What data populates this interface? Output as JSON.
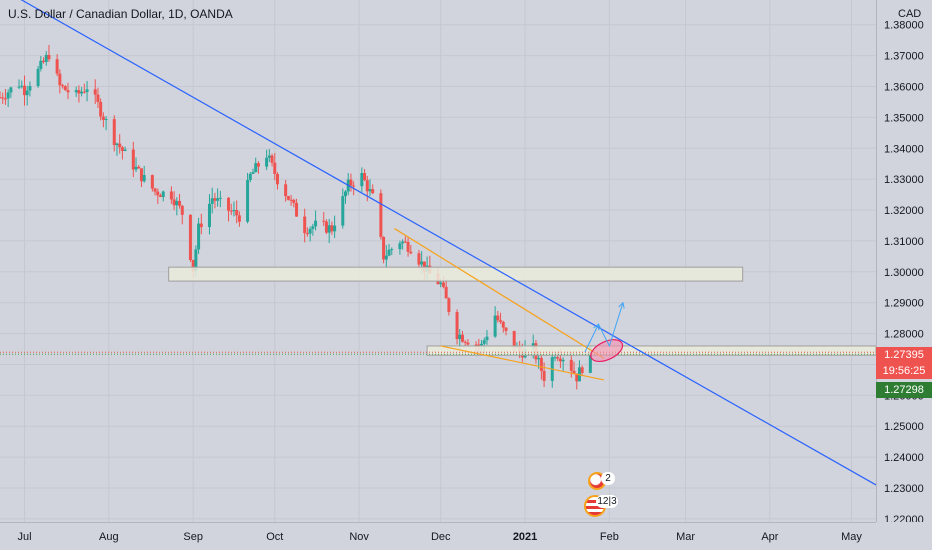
{
  "header": {
    "title": "U.S. Dollar / Canadian Dollar, 1D, OANDA",
    "currency": "CAD"
  },
  "price_axis": {
    "ticks": [
      "1.38000",
      "1.37000",
      "1.36000",
      "1.35000",
      "1.34000",
      "1.33000",
      "1.32000",
      "1.31000",
      "1.30000",
      "1.29000",
      "1.28000",
      "1.27000",
      "1.26000",
      "1.25000",
      "1.24000",
      "1.23000",
      "1.22000"
    ],
    "price_badge": "1.27395",
    "countdown": "19:56:25",
    "bid_badge": "1.27298"
  },
  "time_axis": {
    "ticks": [
      "Jul",
      "Aug",
      "Sep",
      "Oct",
      "Nov",
      "Dec",
      "2021",
      "Feb",
      "Mar",
      "Apr",
      "May"
    ]
  },
  "events": {
    "top_count": "2",
    "bottom_count": "12|3"
  },
  "colors": {
    "background": "#d1d4dc",
    "up": "#26a69a",
    "down": "#ef5350",
    "trendline": "#2962ff",
    "wedge": "#f7a21b",
    "price_badge": "#ef5350",
    "bid_badge": "#2e7d32",
    "target_arrow": "#42a5f5",
    "target_ellipse": "#e91e63"
  },
  "chart_data": {
    "type": "candlestick",
    "title": "U.S. Dollar / Canadian Dollar, 1D, OANDA",
    "timeframe": "1D",
    "ylim": [
      1.219,
      1.388
    ],
    "y_scale": "linear",
    "x_range": [
      "2020-06-22",
      "2021-05-10"
    ],
    "last_price": 1.27395,
    "bid_price": 1.27298,
    "closes": [
      [
        "2020-06-22",
        1.3565
      ],
      [
        "2020-06-29",
        1.361
      ],
      [
        "2020-07-01",
        1.359
      ],
      [
        "2020-07-06",
        1.365
      ],
      [
        "2020-07-10",
        1.3705
      ],
      [
        "2020-07-14",
        1.36
      ],
      [
        "2020-07-20",
        1.357
      ],
      [
        "2020-07-24",
        1.36
      ],
      [
        "2020-07-28",
        1.354
      ],
      [
        "2020-08-03",
        1.343
      ],
      [
        "2020-08-07",
        1.338
      ],
      [
        "2020-08-13",
        1.331
      ],
      [
        "2020-08-18",
        1.326
      ],
      [
        "2020-08-24",
        1.325
      ],
      [
        "2020-08-28",
        1.319
      ],
      [
        "2020-09-01",
        1.301
      ],
      [
        "2020-09-03",
        1.314
      ],
      [
        "2020-09-08",
        1.324
      ],
      [
        "2020-09-14",
        1.32
      ],
      [
        "2020-09-18",
        1.318
      ],
      [
        "2020-09-22",
        1.331
      ],
      [
        "2020-09-28",
        1.338
      ],
      [
        "2020-10-02",
        1.33
      ],
      [
        "2020-10-06",
        1.324
      ],
      [
        "2020-10-12",
        1.314
      ],
      [
        "2020-10-16",
        1.315
      ],
      [
        "2020-10-22",
        1.314
      ],
      [
        "2020-10-28",
        1.328
      ],
      [
        "2020-11-02",
        1.331
      ],
      [
        "2020-11-06",
        1.324
      ],
      [
        "2020-11-10",
        1.305
      ],
      [
        "2020-11-16",
        1.31
      ],
      [
        "2020-11-20",
        1.308
      ],
      [
        "2020-11-26",
        1.3
      ],
      [
        "2020-12-01",
        1.296
      ],
      [
        "2020-12-07",
        1.28
      ],
      [
        "2020-12-11",
        1.278
      ],
      [
        "2020-12-16",
        1.276
      ],
      [
        "2020-12-21",
        1.286
      ],
      [
        "2020-12-24",
        1.281
      ],
      [
        "2020-12-30",
        1.274
      ],
      [
        "2021-01-04",
        1.275
      ],
      [
        "2021-01-08",
        1.266
      ],
      [
        "2021-01-12",
        1.274
      ],
      [
        "2021-01-16",
        1.272
      ],
      [
        "2021-01-20",
        1.266
      ],
      [
        "2021-01-25",
        1.274
      ]
    ],
    "annotations": {
      "descending_trendline": [
        [
          "2020-06-22",
          1.392
        ],
        [
          "2021-05-10",
          1.231
        ]
      ],
      "resistance_zone": {
        "from": "2020-08-23",
        "to": "2021-03-22",
        "low": 1.297,
        "high": 1.3015
      },
      "support_zone": {
        "from": "2020-11-26",
        "to": "2021-05-10",
        "low": 1.273,
        "high": 1.276
      },
      "wedge_upper": [
        [
          "2020-11-14",
          1.314
        ],
        [
          "2021-01-30",
          1.272
        ]
      ],
      "wedge_lower": [
        [
          "2020-12-01",
          1.276
        ],
        [
          "2021-01-30",
          1.265
        ]
      ],
      "projection": [
        [
          "2021-01-23",
          1.274
        ],
        [
          "2021-01-28",
          1.283
        ],
        [
          "2021-02-01",
          1.276
        ],
        [
          "2021-02-06",
          1.29
        ]
      ],
      "target_ellipse_center": [
        "2021-01-31",
        1.2745
      ]
    }
  }
}
